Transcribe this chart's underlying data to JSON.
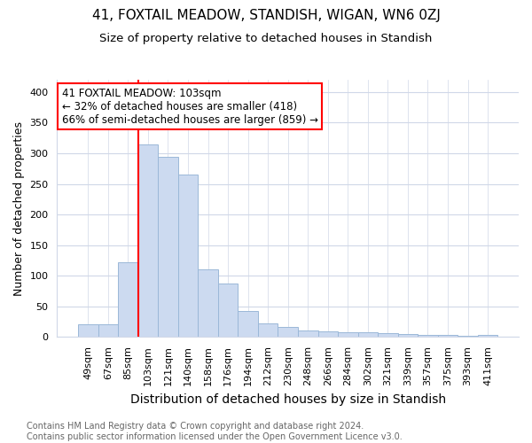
{
  "title": "41, FOXTAIL MEADOW, STANDISH, WIGAN, WN6 0ZJ",
  "subtitle": "Size of property relative to detached houses in Standish",
  "xlabel": "Distribution of detached houses by size in Standish",
  "ylabel": "Number of detached properties",
  "categories": [
    "49sqm",
    "67sqm",
    "85sqm",
    "103sqm",
    "121sqm",
    "140sqm",
    "158sqm",
    "176sqm",
    "194sqm",
    "212sqm",
    "230sqm",
    "248sqm",
    "266sqm",
    "284sqm",
    "302sqm",
    "321sqm",
    "339sqm",
    "357sqm",
    "375sqm",
    "393sqm",
    "411sqm"
  ],
  "values": [
    20,
    20,
    122,
    314,
    294,
    265,
    110,
    87,
    43,
    22,
    17,
    10,
    9,
    8,
    7,
    6,
    5,
    4,
    4,
    2,
    3
  ],
  "bar_color": "#ccdaf0",
  "bar_edge_color": "#9bb8d8",
  "red_line_index": 3,
  "annotation_text": "41 FOXTAIL MEADOW: 103sqm\n← 32% of detached houses are smaller (418)\n66% of semi-detached houses are larger (859) →",
  "annotation_box_color": "white",
  "annotation_box_edge_color": "red",
  "ylim": [
    0,
    420
  ],
  "yticks": [
    0,
    50,
    100,
    150,
    200,
    250,
    300,
    350,
    400
  ],
  "footer_text": "Contains HM Land Registry data © Crown copyright and database right 2024.\nContains public sector information licensed under the Open Government Licence v3.0.",
  "title_fontsize": 11,
  "subtitle_fontsize": 9.5,
  "xlabel_fontsize": 10,
  "ylabel_fontsize": 9,
  "tick_fontsize": 8,
  "footer_fontsize": 7,
  "background_color": "#ffffff",
  "grid_color": "#d0d8e8"
}
